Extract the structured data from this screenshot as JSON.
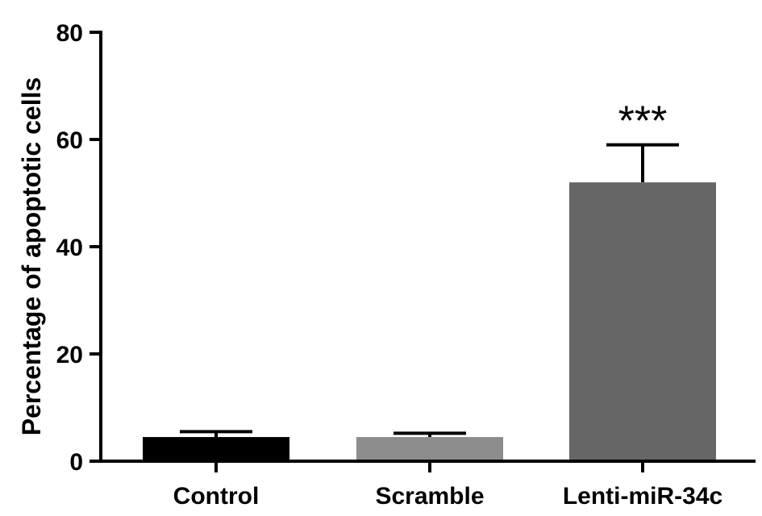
{
  "chart_data": {
    "type": "bar",
    "title": "",
    "xlabel": "",
    "ylabel": "Percentage of apoptotic cells",
    "ylim": [
      0,
      80
    ],
    "yticks": [
      0,
      20,
      40,
      60,
      80
    ],
    "grid": false,
    "legend": "none",
    "categories": [
      "Control",
      "Scramble",
      "Lenti-miR-34c"
    ],
    "values": [
      4.5,
      4.5,
      52
    ],
    "errors": [
      1.0,
      0.7,
      7.0
    ],
    "colors": [
      "#000000",
      "#8c8c8c",
      "#666666"
    ],
    "annotations": [
      {
        "category": "Lenti-miR-34c",
        "text": "***"
      }
    ]
  }
}
